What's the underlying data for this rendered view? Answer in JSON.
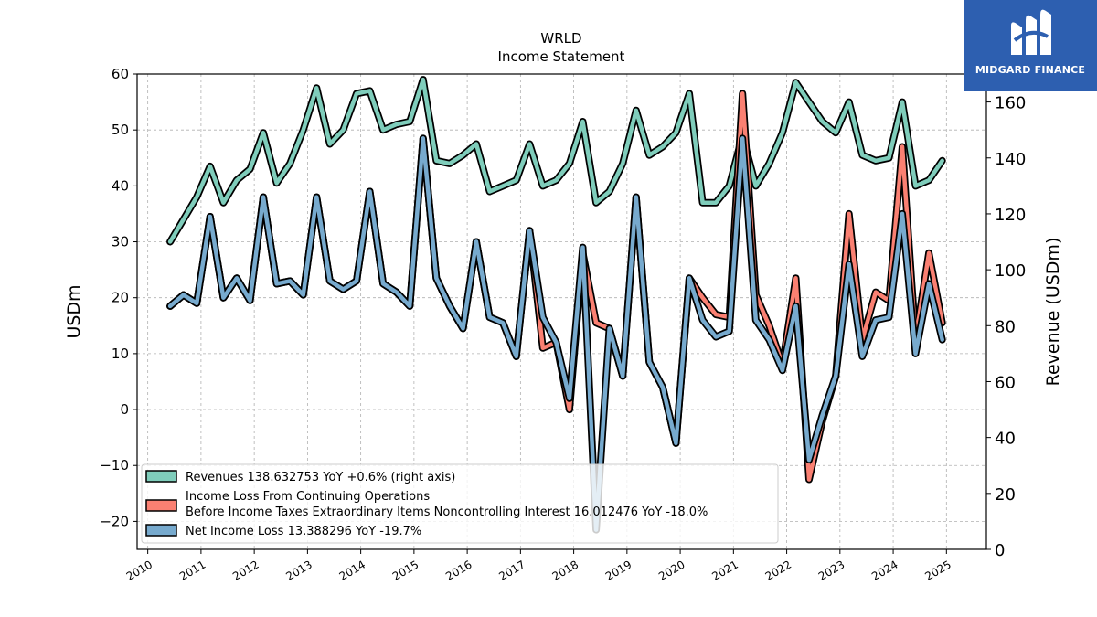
{
  "chart_data": {
    "type": "line",
    "title": "WRLD",
    "subtitle": "Income Statement",
    "ylabel": "USDm",
    "ylabel_right": "Revenue (USDm)",
    "ylim": [
      -25,
      60
    ],
    "ylim_right": [
      0,
      170
    ],
    "yticks": [
      -20,
      -10,
      0,
      10,
      20,
      30,
      40,
      50,
      60
    ],
    "yticks_right": [
      0,
      20,
      40,
      60,
      80,
      100,
      120,
      140,
      160
    ],
    "xlim": [
      2009.8,
      2025.75
    ],
    "xticks": [
      "2010",
      "2011",
      "2012",
      "2013",
      "2014",
      "2015",
      "2016",
      "2017",
      "2018",
      "2019",
      "2020",
      "2021",
      "2022",
      "2023",
      "2024",
      "2025"
    ],
    "grid": true,
    "legend_position": "lower-left",
    "x": [
      2010.42,
      2010.67,
      2010.92,
      2011.17,
      2011.42,
      2011.67,
      2011.92,
      2012.17,
      2012.42,
      2012.67,
      2012.92,
      2013.17,
      2013.42,
      2013.67,
      2013.92,
      2014.17,
      2014.42,
      2014.67,
      2014.92,
      2015.17,
      2015.42,
      2015.67,
      2015.92,
      2016.17,
      2016.42,
      2016.67,
      2016.92,
      2017.17,
      2017.42,
      2017.67,
      2017.92,
      2018.17,
      2018.42,
      2018.67,
      2018.92,
      2019.17,
      2019.42,
      2019.67,
      2019.92,
      2020.17,
      2020.42,
      2020.67,
      2020.92,
      2021.17,
      2021.42,
      2021.67,
      2021.92,
      2022.17,
      2022.42,
      2022.67,
      2022.92,
      2023.17,
      2023.42,
      2023.67,
      2023.92,
      2024.17,
      2024.42,
      2024.67,
      2024.92
    ],
    "series": [
      {
        "name": "Revenues  138.632753 YoY +0.6% (right axis)",
        "axis": "right",
        "color": "#7fcdbb",
        "values": [
          110,
          118,
          126,
          137,
          124,
          132,
          136,
          149,
          131,
          138,
          150,
          165,
          145,
          150,
          163,
          164,
          150,
          152,
          153,
          168,
          139,
          138,
          141,
          145,
          128,
          130,
          132,
          145,
          130,
          132,
          138,
          153,
          124,
          128,
          138,
          157,
          141,
          144,
          149,
          163,
          124,
          124,
          130,
          148,
          130,
          138,
          149,
          167,
          160,
          153,
          149,
          160,
          141,
          139,
          140,
          160,
          130,
          132,
          139
        ]
      },
      {
        "name": "Income Loss From Continuing Operations\nBefore Income Taxes Extraordinary Items Noncontrolling Interest  16.012476 YoY -18.0%",
        "axis": "left",
        "color": "#fa8072",
        "values": [
          18.5,
          20.5,
          19,
          34.5,
          20,
          23.5,
          19.5,
          38,
          22.5,
          23,
          20.5,
          38,
          23,
          21.5,
          23,
          39,
          22.5,
          21,
          18.5,
          48.5,
          23.5,
          18.5,
          14.5,
          30,
          16.5,
          15.5,
          9.5,
          32,
          11,
          12,
          0,
          28,
          15.5,
          14.5,
          6,
          38,
          8.5,
          4,
          -6,
          23.5,
          20,
          17,
          16.5,
          56.5,
          20.5,
          15,
          8,
          23.5,
          -12.5,
          -2,
          6,
          35,
          12.5,
          21,
          19.5,
          47,
          12.5,
          28,
          15.5
        ]
      },
      {
        "name": "Net Income Loss  13.388296 YoY -19.7%",
        "axis": "left",
        "color": "#77aace",
        "values": [
          18.5,
          20.5,
          19,
          34.5,
          20,
          23.5,
          19.5,
          38,
          22.5,
          23,
          20.5,
          38,
          23,
          21.5,
          23,
          39,
          22.5,
          21,
          18.5,
          48.5,
          23.5,
          18.5,
          14.5,
          30,
          16.5,
          15.5,
          9.5,
          32,
          16.5,
          12,
          2,
          29,
          -21.5,
          14.5,
          6,
          38,
          8.5,
          4,
          -6,
          23.5,
          16,
          13,
          14,
          48.5,
          16,
          12.5,
          7,
          18.5,
          -9,
          -1,
          6,
          26,
          9.5,
          16,
          16.5,
          35,
          10,
          22.5,
          12.5
        ]
      }
    ],
    "watermark_text": "MIDGARD FINANCE"
  }
}
